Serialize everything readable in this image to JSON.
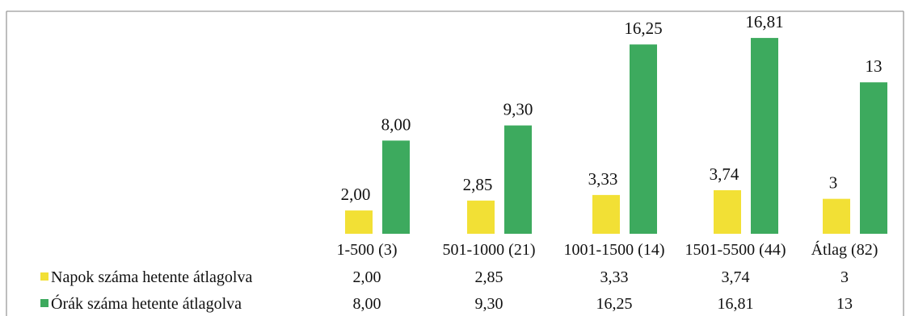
{
  "chart_data": {
    "type": "bar",
    "categories": [
      "1-500 (3)",
      "501-1000 (21)",
      "1001-1500 (14)",
      "1501-5500 (44)",
      "Átlag (82)"
    ],
    "series": [
      {
        "name": "Napok száma hetente átlagolva",
        "color": "#f2e035",
        "values": [
          2.0,
          2.85,
          3.33,
          3.74,
          3
        ],
        "labels": [
          "2,00",
          "2,85",
          "3,33",
          "3,74",
          "3"
        ]
      },
      {
        "name": "Órák száma hetente átlagolva",
        "color": "#3daa5e",
        "values": [
          8.0,
          9.3,
          16.25,
          16.81,
          13
        ],
        "labels": [
          "8,00",
          "9,30",
          "16,25",
          "16,81",
          "13"
        ]
      }
    ],
    "ylim": [
      0,
      17.3
    ],
    "grid": false,
    "legend": "data table below chart",
    "title": "",
    "xlabel": "",
    "ylabel": ""
  }
}
